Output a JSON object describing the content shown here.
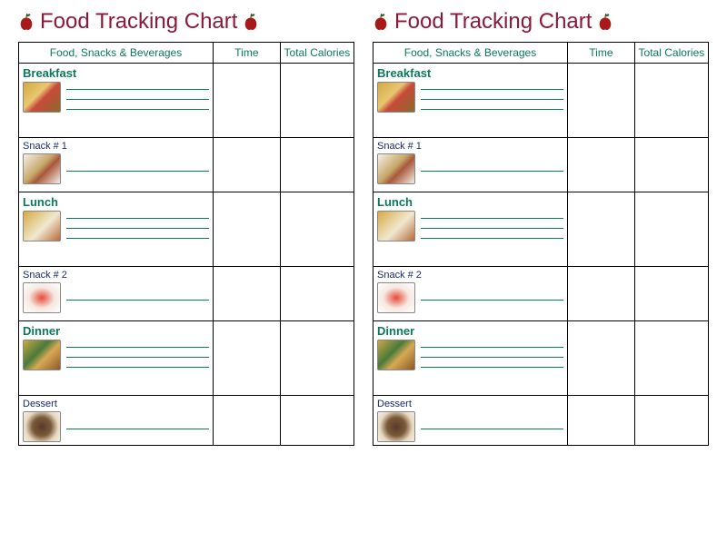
{
  "title": "Food Tracking Chart",
  "columns": {
    "food": "Food, Snacks & Beverages",
    "time": "Time",
    "calories": "Total Calories"
  },
  "meals": [
    {
      "label": "Breakfast",
      "type": "meal",
      "lines": 3,
      "size": "large",
      "img": {
        "bg": "linear-gradient(135deg,#d4a843 0%,#e8c770 40%,#c94a3b 55%,#8a6a2a 100%)"
      }
    },
    {
      "label": "Snack # 1",
      "type": "snack",
      "lines": 1,
      "size": "small",
      "img": {
        "bg": "linear-gradient(135deg,#f5f0e8 0%,#c7a86a 45%,#a8583a 60%,#f5f0e8 100%)"
      }
    },
    {
      "label": "Lunch",
      "type": "meal",
      "lines": 3,
      "size": "large",
      "img": {
        "bg": "linear-gradient(135deg,#d8a843 0%,#e8d8a8 40%,#f0e8d0 55%,#b86a3a 100%)"
      }
    },
    {
      "label": "Snack # 2",
      "type": "snack",
      "lines": 1,
      "size": "small",
      "img": {
        "bg": "radial-gradient(ellipse at 50% 50%,#e84a3a 0%,#f5e8e0 50%,#ffffff 100%)"
      }
    },
    {
      "label": "Dinner",
      "type": "meal",
      "lines": 3,
      "size": "large",
      "img": {
        "bg": "linear-gradient(135deg,#c8a843 0%,#4a7a3a 40%,#d8a853 60%,#8a5a2a 100%)"
      }
    },
    {
      "label": "Dessert",
      "type": "snack",
      "lines": 1,
      "size": "dessert",
      "img": {
        "bg": "radial-gradient(circle at 50% 50%,#5a3a2a 0%,#7a5a3a 40%,#e8d8c0 70%,#f5f0e8 100%)"
      }
    }
  ],
  "styling": {
    "title_color": "#8b1a3a",
    "meal_label_color": "#0a7a5a",
    "snack_label_color": "#1a2a6b",
    "line_color": "#0a7a5a",
    "border_color": "#000000",
    "title_font": "Comic Sans MS",
    "title_fontsize": 24,
    "header_fontsize": 12,
    "meal_fontsize": 13,
    "snack_fontsize": 11,
    "apple_colors": {
      "body": "#a81a1a",
      "leaf": "#2a6a2a",
      "stem": "#5a3a1a"
    }
  }
}
